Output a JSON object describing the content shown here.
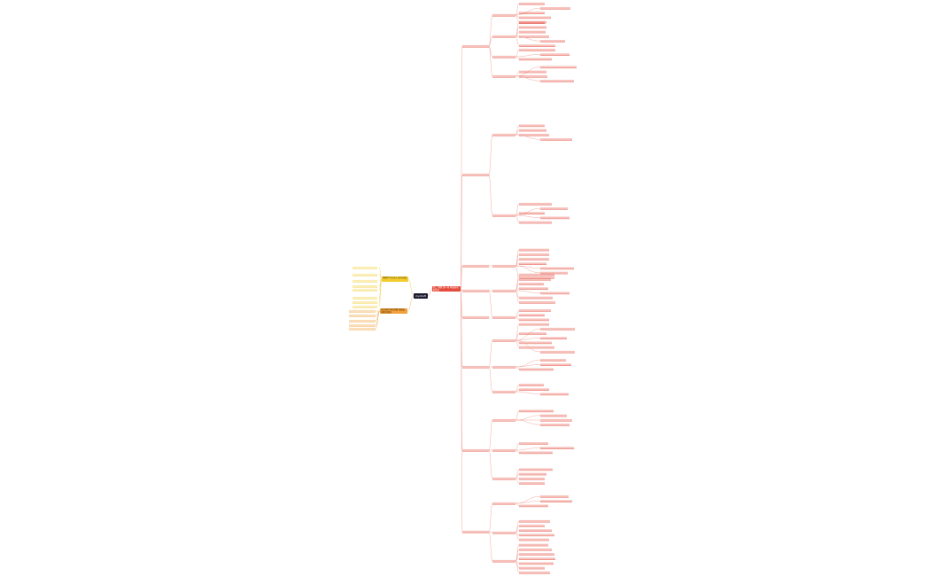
{
  "root": {
    "label": "mydraft"
  },
  "branches": {
    "red": {
      "label": "初二 物理 第一章 机械运动 知识点",
      "color": "#e54b3c"
    },
    "yellow": {
      "label": "物理学习方法与 技巧总结",
      "color": "#f3cb2e"
    },
    "orange": {
      "label": "长度和时间的测量 机械运动相关概念",
      "color": "#f1a03a"
    }
  },
  "colors": {
    "line_red": "#f2a99f",
    "line_yellow": "#f6d56c",
    "line_orange": "#f5b870",
    "root_bg": "#1c1a2e"
  }
}
